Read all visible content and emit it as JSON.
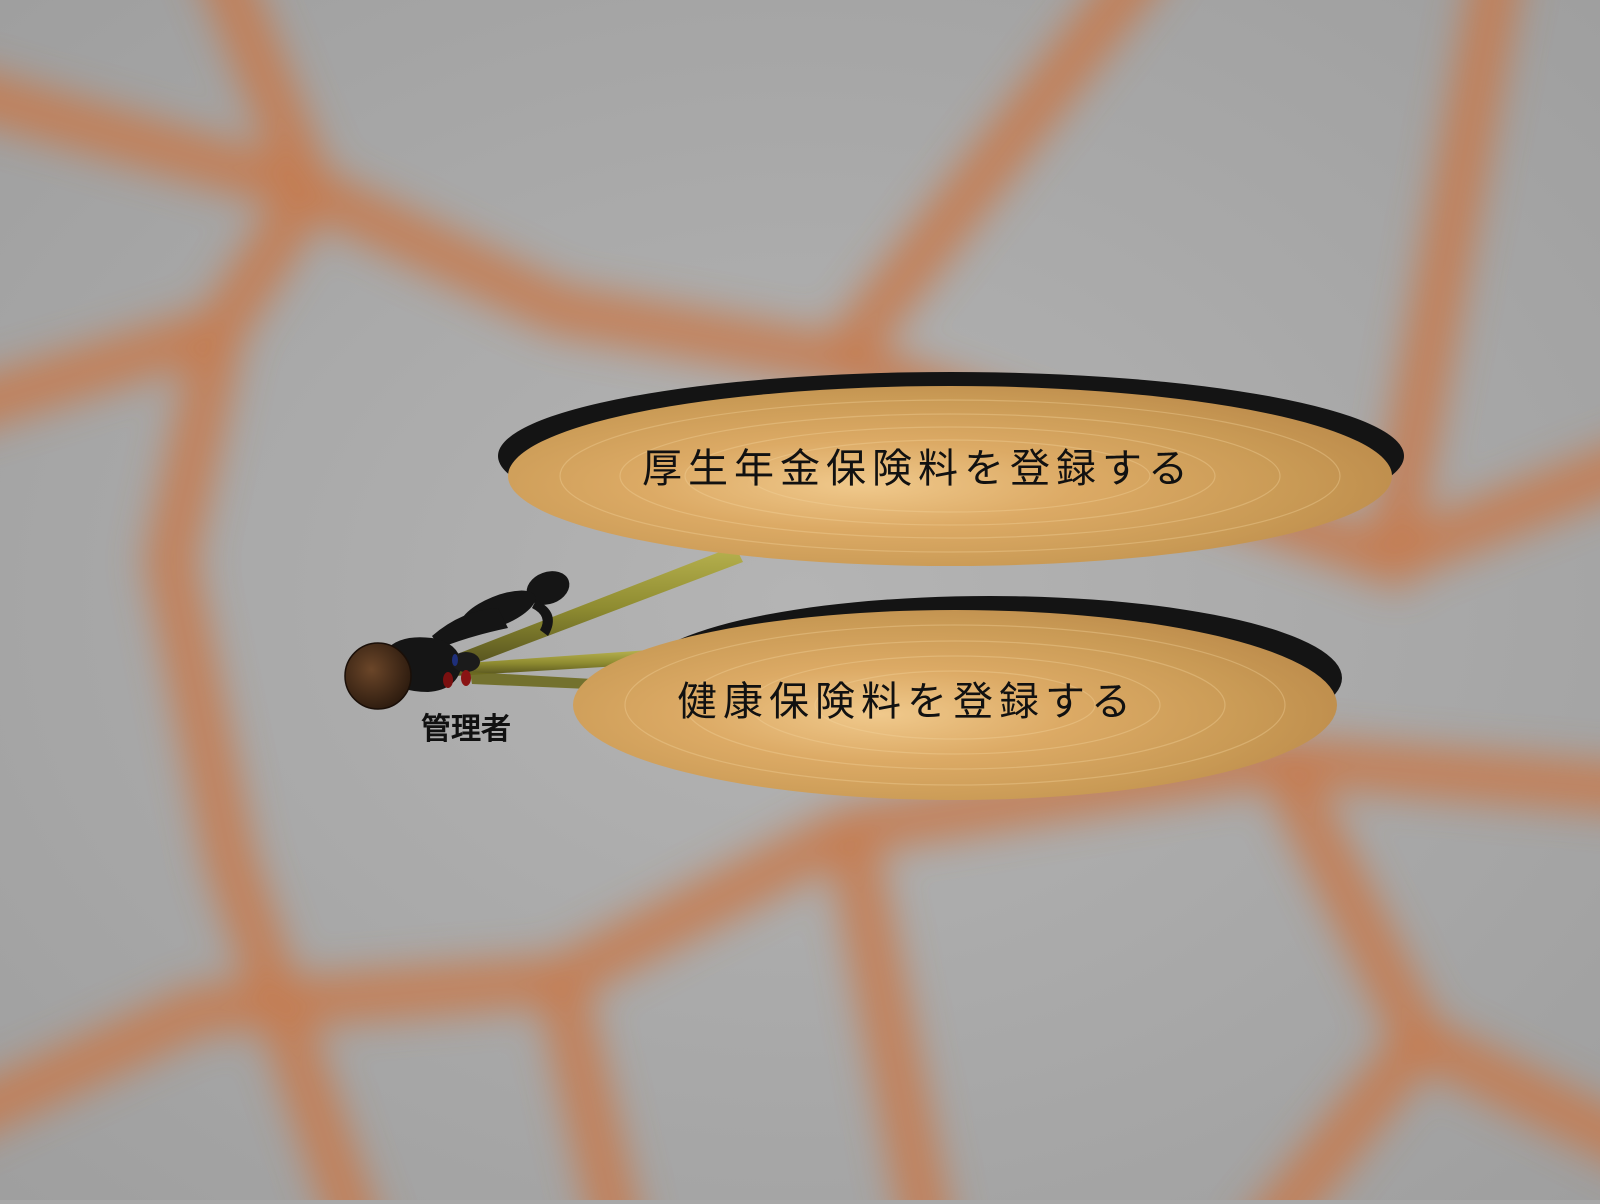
{
  "diagram": {
    "type": "use-case",
    "actor": {
      "label": "管理者"
    },
    "use_cases": [
      {
        "label": "厚生年金保険料を登録する"
      },
      {
        "label": "健康保険料を登録する"
      }
    ],
    "associations": [
      {
        "from": "管理者",
        "to": "厚生年金保険料を登録する"
      },
      {
        "from": "管理者",
        "to": "健康保険料を登録する"
      }
    ]
  },
  "colors": {
    "background_gray": "#a9a9a9",
    "background_veins": "#c8784a",
    "disc_wood": "#d7a65f",
    "disc_shadow": "#141414",
    "association_line": "#8f8f2a",
    "actor_body": "#151515",
    "actor_head": "#4a2e1c",
    "text": "#111111"
  }
}
